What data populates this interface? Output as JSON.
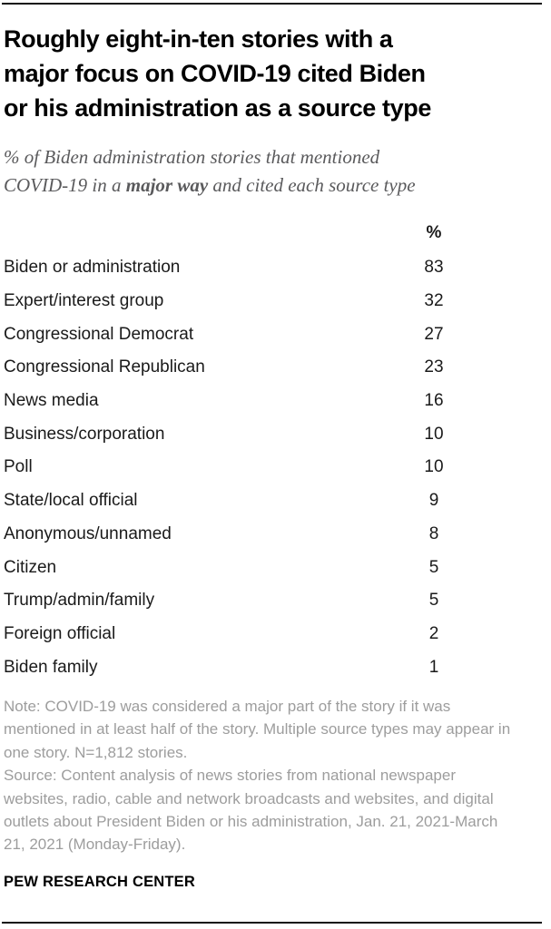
{
  "colors": {
    "title_text": "#000000",
    "subtitle_text": "#5a5a5c",
    "table_text": "#1a1a1a",
    "note_text": "#9d9d9d",
    "rule": "#111111",
    "background": "#ffffff"
  },
  "header": {
    "title_lines": [
      "Roughly eight-in-ten stories with a",
      "major focus on COVID-19 cited Biden",
      "or his administration as a source type"
    ],
    "subtitle_line1": "% of Biden administration stories that mentioned",
    "subtitle_line2_pre": "COVID-19 in a ",
    "subtitle_line2_bold": "major way",
    "subtitle_line2_post": " and cited each source type"
  },
  "table": {
    "value_header": "%",
    "rows": [
      {
        "label": "Biden or administration",
        "value": "83"
      },
      {
        "label": "Expert/interest group",
        "value": "32"
      },
      {
        "label": "Congressional Democrat",
        "value": "27"
      },
      {
        "label": "Congressional Republican",
        "value": "23"
      },
      {
        "label": "News media",
        "value": "16"
      },
      {
        "label": "Business/corporation",
        "value": "10"
      },
      {
        "label": "Poll",
        "value": "10"
      },
      {
        "label": "State/local official",
        "value": "9"
      },
      {
        "label": "Anonymous/unnamed",
        "value": "8"
      },
      {
        "label": "Citizen",
        "value": "5"
      },
      {
        "label": "Trump/admin/family",
        "value": "5"
      },
      {
        "label": "Foreign official",
        "value": "2"
      },
      {
        "label": "Biden family",
        "value": "1"
      }
    ]
  },
  "notes": {
    "note": "Note: COVID-19 was considered a major part of the story if it was mentioned in at least half of the story. Multiple source types may appear in one story. N=1,812 stories.",
    "source": "Source: Content analysis of news stories from national newspaper websites, radio, cable and network broadcasts and websites, and digital outlets about President Biden or his administration, Jan. 21, 2021-March 21, 2021 (Monday-Friday)."
  },
  "footer": {
    "brand": "PEW RESEARCH CENTER"
  },
  "chart_data": {
    "type": "table",
    "title": "Roughly eight-in-ten stories with a major focus on COVID-19 cited Biden or his administration as a source type",
    "subtitle": "% of Biden administration stories that mentioned COVID-19 in a major way and cited each source type",
    "value_header": "%",
    "categories": [
      "Biden or administration",
      "Expert/interest group",
      "Congressional Democrat",
      "Congressional Republican",
      "News media",
      "Business/corporation",
      "Poll",
      "State/local official",
      "Anonymous/unnamed",
      "Citizen",
      "Trump/admin/family",
      "Foreign official",
      "Biden family"
    ],
    "values": [
      83,
      32,
      27,
      23,
      16,
      10,
      10,
      9,
      8,
      5,
      5,
      2,
      1
    ],
    "note": "Note: COVID-19 was considered a major part of the story if it was mentioned in at least half of the story. Multiple source types may appear in one story. N=1,812 stories.",
    "source": "Source: Content analysis of news stories from national newspaper websites, radio, cable and network broadcasts and websites, and digital outlets about President Biden or his administration, Jan. 21, 2021-March 21, 2021 (Monday-Friday).",
    "branding": "PEW RESEARCH CENTER"
  }
}
